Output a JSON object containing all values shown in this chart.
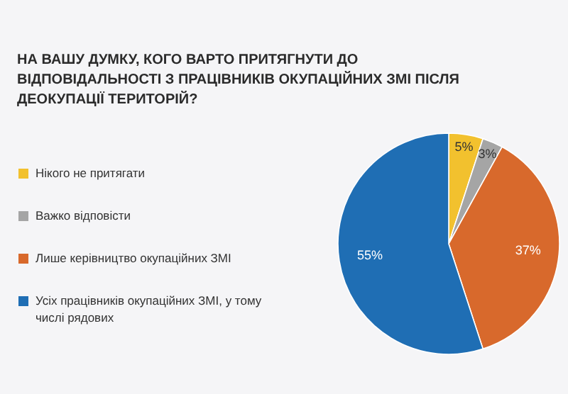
{
  "chart_data": {
    "type": "pie",
    "title": "НА ВАШУ ДУМКУ, КОГО ВАРТО ПРИТЯГНУТИ ДО ВІДПОВІДАЛЬНОСТІ З ПРАЦІВНИКІВ ОКУПАЦІЙНИХ ЗМІ ПІСЛЯ ДЕОКУПАЦІЇ ТЕРИТОРІЙ?",
    "categories": [
      "Нікого не притягати",
      "Важко відповісти",
      "Лише керівництво окупаційних ЗМІ",
      "Усіх працівників окупаційних ЗМІ, у тому числі рядових"
    ],
    "values": [
      5,
      3,
      37,
      55
    ],
    "colors": [
      "#f2c12e",
      "#a5a5a5",
      "#d8692c",
      "#1f6eb4"
    ],
    "value_labels": [
      "5%",
      "3%",
      "37%",
      "55%"
    ],
    "legend": "left"
  }
}
